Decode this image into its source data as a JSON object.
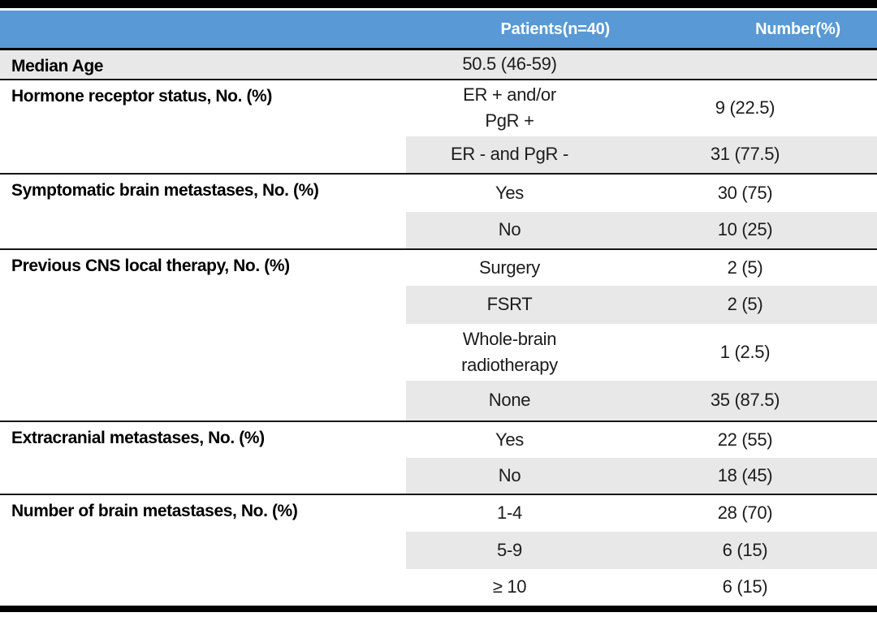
{
  "table": {
    "header": {
      "patients": "Patients(n=40)",
      "number": "Number(%)"
    },
    "sections": [
      {
        "label": "Median Age",
        "rows": [
          {
            "patients": "50.5 (46-59)",
            "number": ""
          }
        ]
      },
      {
        "label": "Hormone receptor status, No. (%)",
        "rows": [
          {
            "patients": "ER + and/or\nPgR +",
            "number": "9 (22.5)"
          },
          {
            "patients": "ER - and PgR -",
            "number": "31 (77.5)"
          }
        ]
      },
      {
        "label": "Symptomatic brain metastases, No. (%)",
        "rows": [
          {
            "patients": "Yes",
            "number": "30 (75)"
          },
          {
            "patients": "No",
            "number": "10 (25)"
          }
        ]
      },
      {
        "label": "Previous CNS local therapy, No. (%)",
        "rows": [
          {
            "patients": "Surgery",
            "number": "2 (5)"
          },
          {
            "patients": "FSRT",
            "number": "2 (5)"
          },
          {
            "patients": "Whole-brain\nradiotherapy",
            "number": "1 (2.5)"
          },
          {
            "patients": "None",
            "number": "35 (87.5)"
          }
        ]
      },
      {
        "label": "Extracranial metastases, No. (%)",
        "rows": [
          {
            "patients": "Yes",
            "number": "22 (55)"
          },
          {
            "patients": "No",
            "number": "18 (45)"
          }
        ]
      },
      {
        "label": "Number of brain metastases, No. (%)",
        "rows": [
          {
            "patients": "1-4",
            "number": "28 (70)"
          },
          {
            "patients": "5-9",
            "number": "6 (15)"
          },
          {
            "patients": "≥ 10",
            "number": "6 (15)"
          }
        ]
      }
    ],
    "colors": {
      "header_bg": "#5899D6",
      "header_text": "#FFFFFF",
      "row_shade": "#E9E8E8",
      "border": "#000000"
    }
  }
}
